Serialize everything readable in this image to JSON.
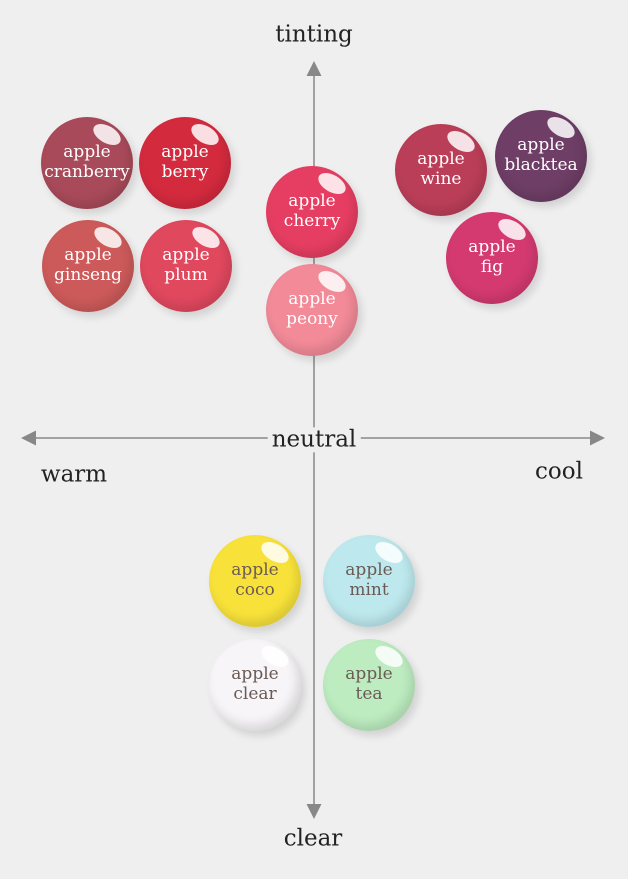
{
  "axes": {
    "top": "tinting",
    "bottom": "clear",
    "left": "warm",
    "right": "cool",
    "center": "neutral"
  },
  "products": [
    {
      "line1": "apple",
      "line2": "cranberry",
      "color": "#a94a5a",
      "text_color": "#ffffff"
    },
    {
      "line1": "apple",
      "line2": "berry",
      "color": "#d42a3e",
      "text_color": "#ffffff"
    },
    {
      "line1": "apple",
      "line2": "ginseng",
      "color": "#cd5a5a",
      "text_color": "#ffffff"
    },
    {
      "line1": "apple",
      "line2": "plum",
      "color": "#e0485e",
      "text_color": "#ffffff"
    },
    {
      "line1": "apple",
      "line2": "cherry",
      "color": "#e63e62",
      "text_color": "#ffffff"
    },
    {
      "line1": "apple",
      "line2": "peony",
      "color": "#f28a98",
      "text_color": "#ffffff"
    },
    {
      "line1": "apple",
      "line2": "wine",
      "color": "#bb3e58",
      "text_color": "#ffffff"
    },
    {
      "line1": "apple",
      "line2": "blacktea",
      "color": "#6e3e66",
      "text_color": "#ffffff"
    },
    {
      "line1": "apple",
      "line2": "fig",
      "color": "#d43a70",
      "text_color": "#ffffff"
    },
    {
      "line1": "apple",
      "line2": "coco",
      "color": "#f8e23a",
      "text_color": "#6a5a55"
    },
    {
      "line1": "apple",
      "line2": "mint",
      "color": "#bde9ee",
      "text_color": "#6a5a55"
    },
    {
      "line1": "apple",
      "line2": "clear",
      "color": "#f7f5f7",
      "text_color": "#6a5a55"
    },
    {
      "line1": "apple",
      "line2": "tea",
      "color": "#bdecc0",
      "text_color": "#6a5a55"
    }
  ]
}
